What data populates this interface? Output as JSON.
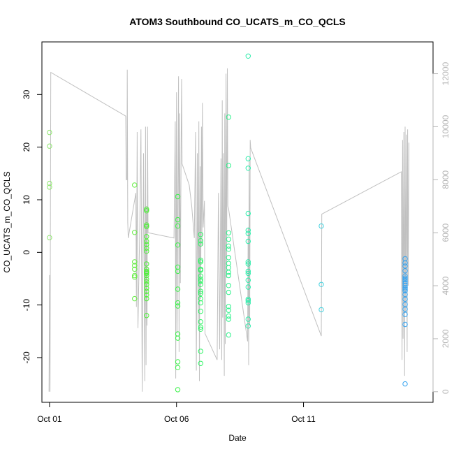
{
  "chart_data": {
    "type": "scatter",
    "title": "ATOM3 Southbound CO_UCATS_m_CO_QCLS",
    "xlabel": "Date",
    "ylabel": "CO_UCATS_m_CO_QCLS",
    "x_ticks": [
      {
        "label": "Oct 01",
        "day": 1
      },
      {
        "label": "Oct 06",
        "day": 6
      },
      {
        "label": "Oct 11",
        "day": 11
      }
    ],
    "y_ticks": [
      -20,
      -10,
      0,
      10,
      20,
      30
    ],
    "y2_ticks": [
      0,
      2000,
      4000,
      6000,
      8000,
      10000,
      12000
    ],
    "xlim": [
      0.7,
      16.1
    ],
    "ylim": [
      -28.5,
      40
    ],
    "y2lim": [
      -400,
      13200
    ],
    "grid": false,
    "point_series": [
      {
        "day": 1.0,
        "color": "#8ee66e",
        "values": [
          22.8,
          20.2,
          13.1,
          12.4,
          2.8
        ]
      },
      {
        "day": 4.35,
        "color": "#66ee44",
        "values": [
          12.8,
          3.8,
          -1.8,
          -2.5,
          -3.2,
          -4.4,
          -4.7,
          -8.8
        ]
      },
      {
        "day": 4.82,
        "color": "#4ef038",
        "values": [
          8.2,
          7.9,
          5.2,
          4.9,
          3.0,
          2.1,
          1.5,
          0.8,
          0.2,
          -2.2,
          -3.2,
          -3.6,
          -3.8,
          -4.0,
          -4.4,
          -5.1,
          -5.6,
          -6.1,
          -6.8,
          -7.4,
          -8.1,
          -8.8,
          -12.0
        ]
      },
      {
        "day": 6.05,
        "color": "#3cf24a",
        "values": [
          10.6,
          6.2,
          5.0,
          1.4,
          -2.8,
          -3.6,
          -7.0,
          -9.6,
          -10.2,
          -15.5,
          -16.3,
          -20.8,
          -21.9,
          -26.1
        ]
      },
      {
        "day": 6.95,
        "color": "#30f466",
        "values": [
          3.4,
          2.2,
          1.6,
          -1.5,
          -1.8,
          -3.2,
          -3.4,
          -4.5,
          -5.1,
          -5.5,
          -6.1,
          -7.4,
          -7.8,
          -8.8,
          -9.6,
          -11.2,
          -13.2,
          -14.2,
          -14.6,
          -18.8,
          -21.1
        ]
      },
      {
        "day": 8.05,
        "color": "#2cf28a",
        "values": [
          25.7,
          16.5,
          3.7,
          2.5,
          1.2,
          0.6,
          -1.0,
          -2.1,
          -2.9,
          -3.8,
          -4.4,
          -6.3,
          -7.6,
          -10.3,
          -11.0,
          -12.1,
          -12.7,
          -15.7
        ]
      },
      {
        "day": 8.82,
        "color": "#2cecaa",
        "values": [
          37.3,
          17.8,
          16.0,
          7.4,
          4.2,
          3.6,
          2.1,
          -1.8,
          -2.2,
          -3.6,
          -4.0,
          -5.3,
          -6.6,
          -8.9,
          -9.2,
          -9.6,
          -12.7,
          -14.0
        ]
      },
      {
        "day": 11.7,
        "color": "#44d2e0",
        "values": [
          5.0,
          -6.1,
          -10.9
        ]
      },
      {
        "day": 15.0,
        "color": "#33a2f0",
        "values": [
          -1.2,
          -2.0,
          -2.6,
          -3.5,
          -4.5,
          -4.9,
          -5.2,
          -5.5,
          -5.9,
          -6.3,
          -6.7,
          -7.0,
          -7.3,
          -8.0,
          -8.9,
          -9.9,
          -10.8,
          -11.8,
          -13.7,
          -25.0
        ]
      }
    ],
    "line_series": {
      "color": "#c0c0c0",
      "axis": "right",
      "points": [
        [
          0.98,
          0
        ],
        [
          1.0,
          4400
        ],
        [
          1.02,
          0
        ],
        [
          1.05,
          12050
        ],
        [
          4.0,
          10400
        ],
        [
          4.02,
          8000
        ],
        [
          4.05,
          8000
        ],
        [
          4.06,
          12150
        ],
        [
          4.08,
          6400
        ],
        [
          4.1,
          5800
        ],
        [
          4.4,
          7500
        ],
        [
          4.42,
          3200
        ],
        [
          4.45,
          9800
        ],
        [
          4.48,
          2400
        ],
        [
          4.55,
          6000
        ],
        [
          4.6,
          9900
        ],
        [
          4.65,
          0
        ],
        [
          4.7,
          9000
        ],
        [
          4.75,
          400
        ],
        [
          4.78,
          10000
        ],
        [
          4.8,
          1000
        ],
        [
          4.82,
          7000
        ],
        [
          4.84,
          2500
        ],
        [
          4.86,
          10000
        ],
        [
          4.88,
          6000
        ],
        [
          5.9,
          5800
        ],
        [
          5.95,
          10200
        ],
        [
          5.97,
          500
        ],
        [
          6.0,
          11300
        ],
        [
          6.02,
          2200
        ],
        [
          6.05,
          6800
        ],
        [
          6.08,
          11900
        ],
        [
          6.1,
          1500
        ],
        [
          6.12,
          10500
        ],
        [
          6.15,
          4100
        ],
        [
          6.18,
          9200
        ],
        [
          6.2,
          11800
        ],
        [
          6.22,
          8600
        ],
        [
          6.5,
          7800
        ],
        [
          6.6,
          7000
        ],
        [
          6.7,
          5800
        ],
        [
          6.75,
          9800
        ],
        [
          6.78,
          800
        ],
        [
          6.82,
          9000
        ],
        [
          6.85,
          2500
        ],
        [
          6.88,
          10200
        ],
        [
          6.9,
          400
        ],
        [
          6.93,
          8500
        ],
        [
          6.95,
          3500
        ],
        [
          6.98,
          10000
        ],
        [
          7.0,
          5500
        ],
        [
          7.02,
          10900
        ],
        [
          7.05,
          6200
        ],
        [
          7.1,
          7200
        ],
        [
          7.12,
          2200
        ],
        [
          7.6,
          1200
        ],
        [
          7.65,
          7500
        ],
        [
          7.7,
          1600
        ],
        [
          7.75,
          8800
        ],
        [
          7.78,
          1200
        ],
        [
          7.8,
          11000
        ],
        [
          7.82,
          2800
        ],
        [
          7.85,
          9000
        ],
        [
          7.88,
          600
        ],
        [
          7.9,
          10500
        ],
        [
          7.92,
          1800
        ],
        [
          7.95,
          12000
        ],
        [
          7.97,
          4300
        ],
        [
          8.0,
          12200
        ],
        [
          8.02,
          7000
        ],
        [
          8.05,
          6900
        ],
        [
          8.8,
          1900
        ],
        [
          8.82,
          6200
        ],
        [
          8.84,
          1000
        ],
        [
          8.86,
          8800
        ],
        [
          8.88,
          2500
        ],
        [
          8.9,
          9500
        ],
        [
          8.92,
          9200
        ],
        [
          11.7,
          2100
        ],
        [
          11.72,
          6700
        ],
        [
          14.85,
          8300
        ],
        [
          14.88,
          1200
        ],
        [
          14.9,
          9500
        ],
        [
          14.92,
          2000
        ],
        [
          14.95,
          9800
        ],
        [
          14.98,
          600
        ],
        [
          15.0,
          10000
        ],
        [
          15.02,
          3000
        ],
        [
          15.05,
          9700
        ],
        [
          15.08,
          1500
        ],
        [
          15.1,
          9900
        ],
        [
          15.12,
          4000
        ],
        [
          15.15,
          9400
        ]
      ]
    }
  }
}
